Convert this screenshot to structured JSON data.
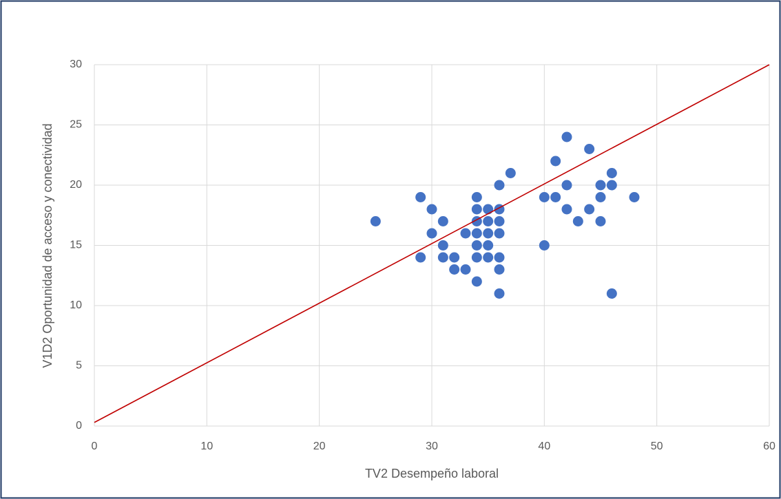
{
  "chart_data": {
    "type": "scatter",
    "x_label": "TV2 Desempeño laboral",
    "y_label": "V1D2 Oportunidad de acceso y conectividad",
    "series": [
      {
        "color": "#4472c4",
        "x": [
          25,
          29,
          29,
          30,
          30,
          31,
          31,
          31,
          32,
          32,
          33,
          33,
          34,
          34,
          34,
          34,
          34,
          34,
          34,
          35,
          35,
          35,
          35,
          35,
          36,
          36,
          36,
          36,
          36,
          36,
          36,
          37,
          40,
          40,
          41,
          41,
          42,
          42,
          42,
          43,
          44,
          44,
          45,
          45,
          45,
          46,
          46,
          46,
          48
        ],
        "values": [
          17,
          19,
          14,
          18,
          16,
          17,
          15,
          14,
          14,
          13,
          16,
          13,
          19,
          18,
          17,
          16,
          15,
          14,
          12,
          18,
          17,
          16,
          15,
          14,
          20,
          18,
          17,
          16,
          14,
          13,
          11,
          21,
          19,
          15,
          22,
          19,
          24,
          20,
          18,
          17,
          23,
          18,
          20,
          19,
          17,
          21,
          20,
          11,
          19
        ]
      }
    ],
    "trend_line": {
      "color": "#c00000",
      "x": [
        0,
        60
      ],
      "values": [
        0.3,
        30
      ]
    },
    "xlim": [
      0,
      60
    ],
    "xticks": [
      0,
      10,
      20,
      30,
      40,
      50,
      60
    ],
    "ylim": [
      0,
      30
    ],
    "yticks": [
      0,
      5,
      10,
      15,
      20,
      25,
      30
    ],
    "grid": true
  }
}
